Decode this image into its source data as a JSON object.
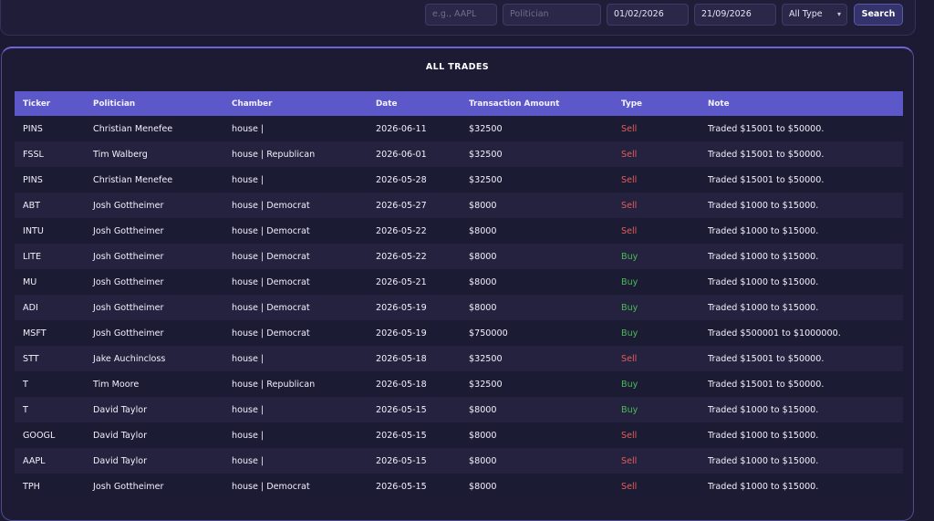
{
  "filters": {
    "ticker_placeholder": "e.g., AAPL",
    "politician_placeholder": "Politician",
    "date_from": "01/02/2026",
    "date_to": "21/09/2026",
    "type_selected": "All Type",
    "search_label": "Search"
  },
  "card": {
    "title": "ALL TRADES"
  },
  "table": {
    "headers": [
      "Ticker",
      "Politician",
      "Chamber",
      "Date",
      "Transaction Amount",
      "Type",
      "Note"
    ],
    "rows": [
      {
        "ticker": "PINS",
        "politician": "Christian Menefee",
        "chamber": "house |",
        "date": "2026-06-11",
        "amount": "$32500",
        "type": "Sell",
        "note": "Traded $15001 to $50000."
      },
      {
        "ticker": "FSSL",
        "politician": "Tim Walberg",
        "chamber": "house | Republican",
        "date": "2026-06-01",
        "amount": "$32500",
        "type": "Sell",
        "note": "Traded $15001 to $50000."
      },
      {
        "ticker": "PINS",
        "politician": "Christian Menefee",
        "chamber": "house |",
        "date": "2026-05-28",
        "amount": "$32500",
        "type": "Sell",
        "note": "Traded $15001 to $50000."
      },
      {
        "ticker": "ABT",
        "politician": "Josh Gottheimer",
        "chamber": "house | Democrat",
        "date": "2026-05-27",
        "amount": "$8000",
        "type": "Sell",
        "note": "Traded $1000 to $15000."
      },
      {
        "ticker": "INTU",
        "politician": "Josh Gottheimer",
        "chamber": "house | Democrat",
        "date": "2026-05-22",
        "amount": "$8000",
        "type": "Sell",
        "note": "Traded $1000 to $15000."
      },
      {
        "ticker": "LITE",
        "politician": "Josh Gottheimer",
        "chamber": "house | Democrat",
        "date": "2026-05-22",
        "amount": "$8000",
        "type": "Buy",
        "note": "Traded $1000 to $15000."
      },
      {
        "ticker": "MU",
        "politician": "Josh Gottheimer",
        "chamber": "house | Democrat",
        "date": "2026-05-21",
        "amount": "$8000",
        "type": "Buy",
        "note": "Traded $1000 to $15000."
      },
      {
        "ticker": "ADI",
        "politician": "Josh Gottheimer",
        "chamber": "house | Democrat",
        "date": "2026-05-19",
        "amount": "$8000",
        "type": "Buy",
        "note": "Traded $1000 to $15000."
      },
      {
        "ticker": "MSFT",
        "politician": "Josh Gottheimer",
        "chamber": "house | Democrat",
        "date": "2026-05-19",
        "amount": "$750000",
        "type": "Buy",
        "note": "Traded $500001 to $1000000."
      },
      {
        "ticker": "STT",
        "politician": "Jake Auchincloss",
        "chamber": "house |",
        "date": "2026-05-18",
        "amount": "$32500",
        "type": "Sell",
        "note": "Traded $15001 to $50000."
      },
      {
        "ticker": "T",
        "politician": "Tim Moore",
        "chamber": "house | Republican",
        "date": "2026-05-18",
        "amount": "$32500",
        "type": "Buy",
        "note": "Traded $15001 to $50000."
      },
      {
        "ticker": "T",
        "politician": "David Taylor",
        "chamber": "house |",
        "date": "2026-05-15",
        "amount": "$8000",
        "type": "Buy",
        "note": "Traded $1000 to $15000."
      },
      {
        "ticker": "GOOGL",
        "politician": "David Taylor",
        "chamber": "house |",
        "date": "2026-05-15",
        "amount": "$8000",
        "type": "Sell",
        "note": "Traded $1000 to $15000."
      },
      {
        "ticker": "AAPL",
        "politician": "David Taylor",
        "chamber": "house |",
        "date": "2026-05-15",
        "amount": "$8000",
        "type": "Sell",
        "note": "Traded $1000 to $15000."
      },
      {
        "ticker": "TPH",
        "politician": "Josh Gottheimer",
        "chamber": "house | Democrat",
        "date": "2026-05-15",
        "amount": "$8000",
        "type": "Sell",
        "note": "Traded $1000 to $15000."
      }
    ]
  },
  "colors": {
    "sell": "#e35d5d",
    "buy": "#4cbb58",
    "header": "#5c58c9"
  }
}
